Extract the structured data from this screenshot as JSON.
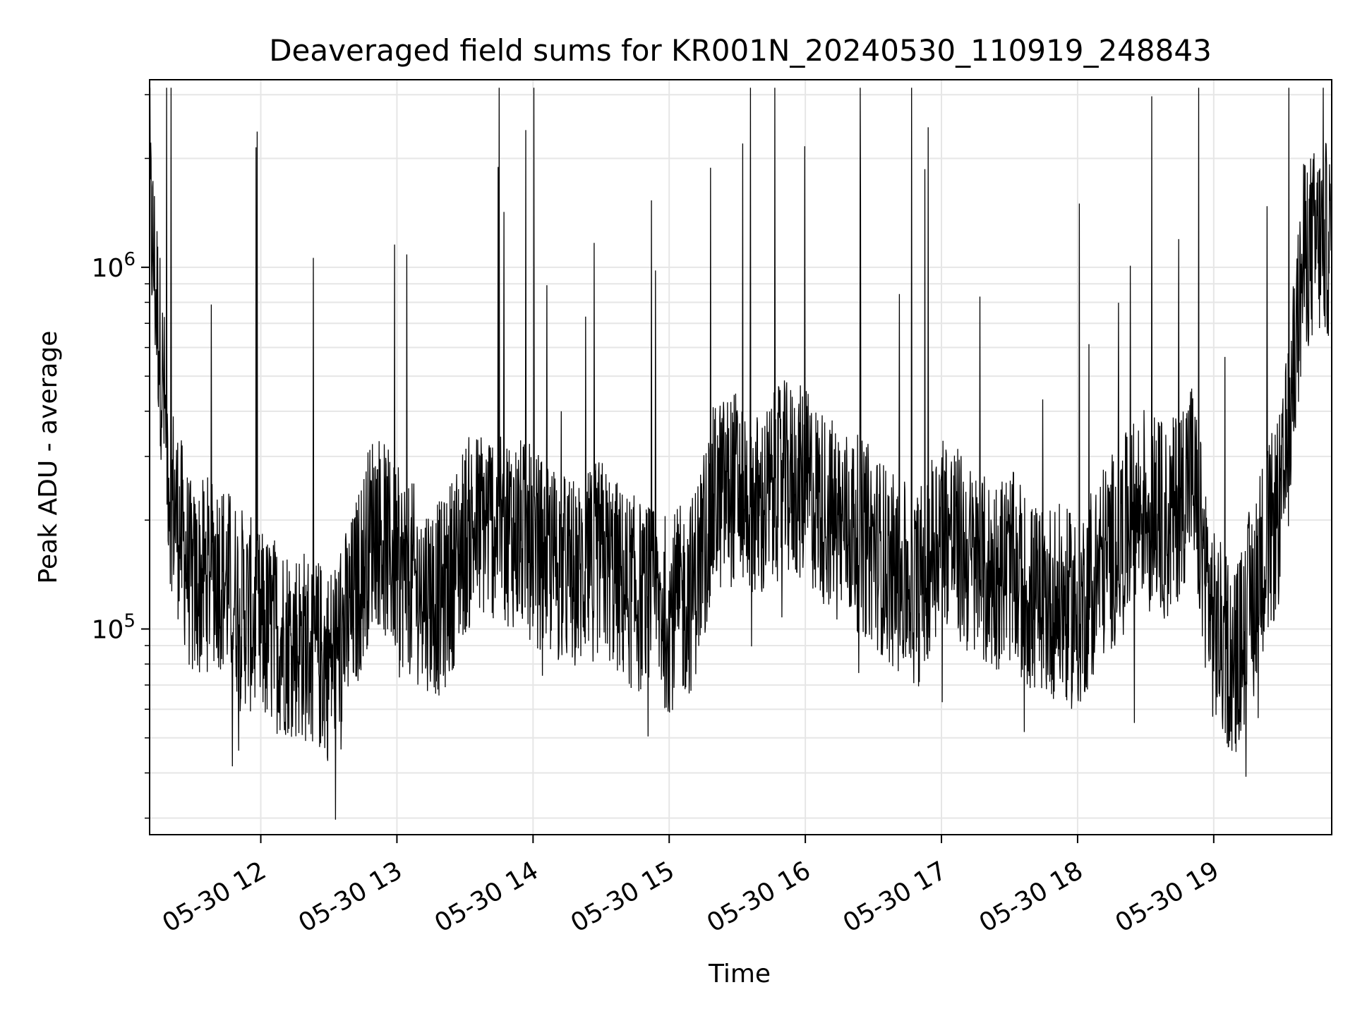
{
  "chart_data": {
    "type": "line",
    "title": "Deaveraged field sums for KR001N_20240530_110919_248843",
    "xlabel": "Time",
    "ylabel": "Peak ADU - average",
    "yscale": "log",
    "ylim": [
      27000,
      3300000
    ],
    "xlim": [
      "05-30 11:11",
      "05-30 19:52"
    ],
    "grid": true,
    "line_color": "#000000",
    "x_ticks": [
      {
        "value": "05-30 12:00",
        "label": "05-30 12"
      },
      {
        "value": "05-30 13:00",
        "label": "05-30 13"
      },
      {
        "value": "05-30 14:00",
        "label": "05-30 14"
      },
      {
        "value": "05-30 15:00",
        "label": "05-30 15"
      },
      {
        "value": "05-30 16:00",
        "label": "05-30 16"
      },
      {
        "value": "05-30 17:00",
        "label": "05-30 17"
      },
      {
        "value": "05-30 18:00",
        "label": "05-30 18"
      },
      {
        "value": "05-30 19:00",
        "label": "05-30 19"
      }
    ],
    "y_ticks": [
      {
        "value": 100000,
        "base": "10",
        "exp": "5"
      },
      {
        "value": 1000000,
        "base": "10",
        "exp": "6"
      }
    ],
    "series": [
      {
        "values_note_x_is_time_hhmm": true,
        "x": [
          "11:11",
          "11:20",
          "11:30",
          "11:40",
          "11:50",
          "12:00",
          "12:10",
          "12:20",
          "12:30",
          "12:40",
          "12:50",
          "13:00",
          "13:10",
          "13:20",
          "13:30",
          "13:40",
          "13:50",
          "14:00",
          "14:10",
          "14:20",
          "14:30",
          "14:40",
          "14:50",
          "15:00",
          "15:10",
          "15:20",
          "15:30",
          "15:40",
          "15:50",
          "16:00",
          "16:10",
          "16:20",
          "16:30",
          "16:40",
          "16:50",
          "17:00",
          "17:10",
          "17:20",
          "17:30",
          "17:40",
          "17:50",
          "18:00",
          "18:10",
          "18:20",
          "18:30",
          "18:40",
          "18:50",
          "19:00",
          "19:10",
          "19:20",
          "19:30",
          "19:40",
          "19:50",
          "19:52"
        ],
        "values": [
          1500000,
          250000,
          130000,
          150000,
          120000,
          100000,
          95000,
          90000,
          80000,
          110000,
          200000,
          150000,
          130000,
          120000,
          180000,
          200000,
          190000,
          170000,
          150000,
          140000,
          160000,
          130000,
          120000,
          110000,
          125000,
          230000,
          250000,
          210000,
          260000,
          250000,
          210000,
          190000,
          170000,
          140000,
          130000,
          200000,
          160000,
          140000,
          150000,
          120000,
          120000,
          110000,
          150000,
          180000,
          230000,
          190000,
          280000,
          100000,
          80000,
          150000,
          220000,
          1100000,
          1200000,
          1100000
        ]
      }
    ]
  }
}
